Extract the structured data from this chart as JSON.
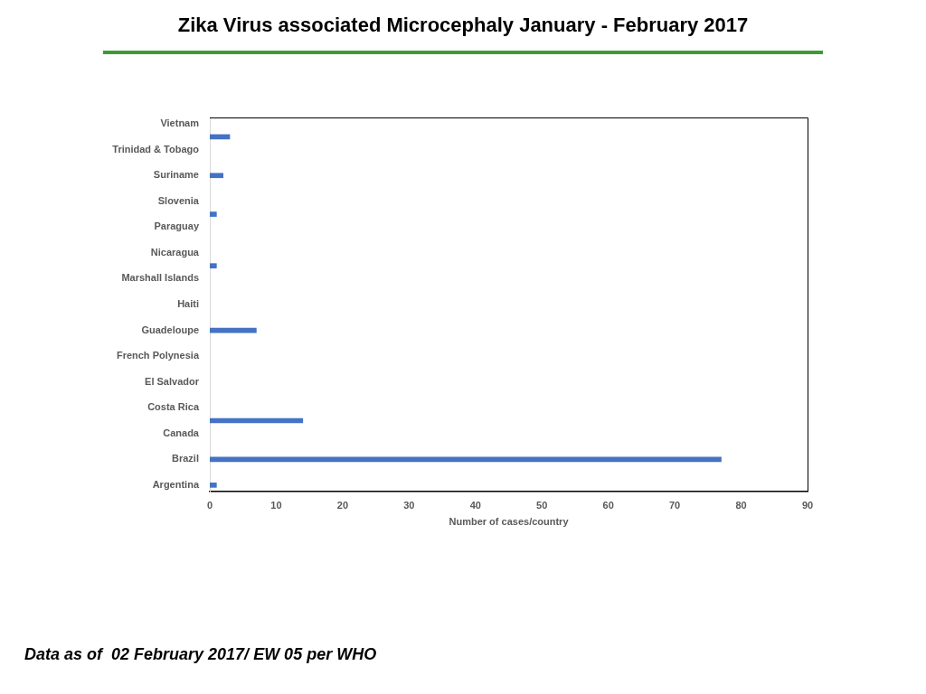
{
  "chart_data": {
    "type": "bar",
    "orientation": "horizontal",
    "title": "Zika Virus associated Microcephaly January - February 2017",
    "xlabel": "Number of cases/country",
    "categories": [
      "Vietnam",
      null,
      "Trinidad & Tobago",
      null,
      "Suriname",
      null,
      "Slovenia",
      null,
      "Paraguay",
      null,
      "Nicaragua",
      null,
      "Marshall Islands",
      null,
      "Haiti",
      null,
      "Guadeloupe",
      null,
      "French Polynesia",
      null,
      "El Salvador",
      null,
      "Costa Rica",
      null,
      "Canada",
      null,
      "Brazil",
      null,
      "Argentina"
    ],
    "values": [
      null,
      3,
      null,
      null,
      2,
      null,
      null,
      1,
      null,
      null,
      null,
      1,
      null,
      null,
      null,
      null,
      7,
      null,
      null,
      null,
      null,
      null,
      null,
      14,
      null,
      null,
      77,
      null,
      1
    ],
    "color": "#4472c4",
    "xlim": [
      0,
      90
    ],
    "xticks": [
      0,
      10,
      20,
      30,
      40,
      50,
      60,
      70,
      80,
      90
    ],
    "annotations": [
      "Data as of  02 February 2017/ EW 05 per WHO"
    ]
  }
}
